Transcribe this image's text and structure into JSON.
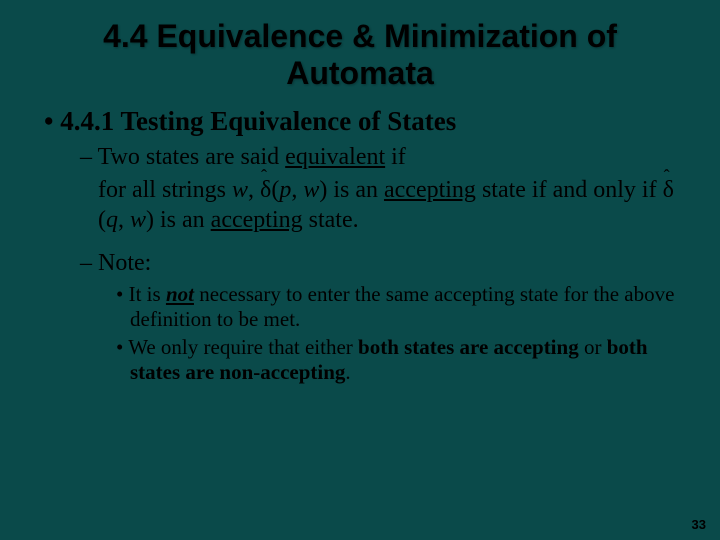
{
  "background_color": "#0a4a4a",
  "text_color": "#000000",
  "title": "4.4 Equivalence & Minimization of Automata",
  "section": {
    "bullet": "•",
    "text": "4.4.1 Testing Equivalence of States"
  },
  "line_equiv_pre": "– Two states are said ",
  "line_equiv_word": "equivalent",
  "line_equiv_post": " if",
  "def_1a": "for all strings ",
  "def_w": "w",
  "def_1b": ", ",
  "def_delta": "δ",
  "def_p_open": "(",
  "def_p": "p",
  "def_1c": ", ",
  "def_1d": ") is an ",
  "def_accept": "accepting",
  "def_1e": " state if and only if ",
  "def_q": "q",
  "def_2e": ") is an ",
  "def_2f": " state.",
  "note_label": "– Note:",
  "note1_a": "• It is ",
  "note1_not": "not",
  "note1_b": " necessary to enter the same accepting state for the above definition to be met.",
  "note2_a": "• We only require that either ",
  "note2_b1": "both states are accepting",
  "note2_mid": " or ",
  "note2_b2": "both states are non-accepting",
  "note2_end": ".",
  "page_number": "33"
}
